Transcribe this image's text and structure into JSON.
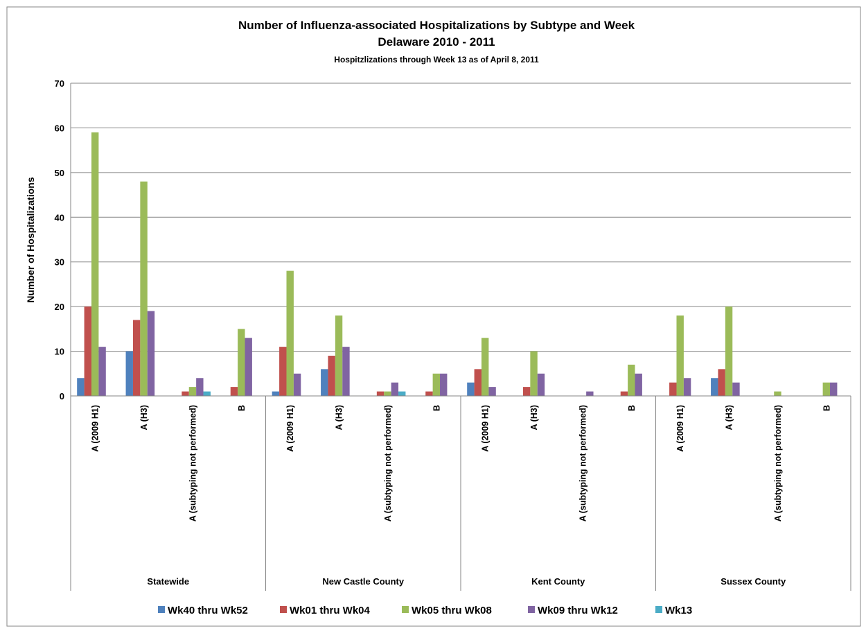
{
  "chart_data": {
    "type": "bar",
    "title": "Number of Influenza-associated Hospitalizations by Subtype and Week",
    "subtitle": "Delaware 2010 - 2011",
    "note": "Hospitzlizations through Week 13 as of April 8, 2011",
    "xlabel": "",
    "ylabel": "Number of Hospitalizations",
    "ylim": [
      0,
      70
    ],
    "yticks": [
      0,
      10,
      20,
      30,
      40,
      50,
      60,
      70
    ],
    "grid": true,
    "legend_position": "bottom",
    "groups": [
      {
        "label": "Statewide",
        "categories": [
          "A (2009 H1)",
          "A (H3)",
          "A (subtyping not performed)",
          "B"
        ]
      },
      {
        "label": "New Castle County",
        "categories": [
          "A (2009 H1)",
          "A (H3)",
          "A (subtyping not performed)",
          "B"
        ]
      },
      {
        "label": "Kent County",
        "categories": [
          "A (2009 H1)",
          "A (H3)",
          "A (subtyping not performed)",
          "B"
        ]
      },
      {
        "label": "Sussex County",
        "categories": [
          "A (2009 H1)",
          "A (H3)",
          "A (subtyping not performed)",
          "B"
        ]
      }
    ],
    "series": [
      {
        "name": "Wk40 thru Wk52",
        "color": "#4F81BD",
        "values": [
          4,
          10,
          0,
          0,
          1,
          6,
          0,
          0,
          3,
          0,
          0,
          0,
          0,
          4,
          0,
          0
        ]
      },
      {
        "name": "Wk01 thru Wk04",
        "color": "#C0504D",
        "values": [
          20,
          17,
          1,
          2,
          11,
          9,
          1,
          1,
          6,
          2,
          0,
          1,
          3,
          6,
          0,
          0
        ]
      },
      {
        "name": "Wk05 thru Wk08",
        "color": "#9BBB59",
        "values": [
          59,
          48,
          2,
          15,
          28,
          18,
          1,
          5,
          13,
          10,
          0,
          7,
          18,
          20,
          1,
          3
        ]
      },
      {
        "name": "Wk09 thru Wk12",
        "color": "#8064A2",
        "values": [
          11,
          19,
          4,
          13,
          5,
          11,
          3,
          5,
          2,
          5,
          1,
          5,
          4,
          3,
          0,
          3
        ]
      },
      {
        "name": "Wk13",
        "color": "#4BACC6",
        "values": [
          0,
          0,
          1,
          0,
          0,
          0,
          1,
          0,
          0,
          0,
          0,
          0,
          0,
          0,
          0,
          0
        ]
      }
    ]
  }
}
